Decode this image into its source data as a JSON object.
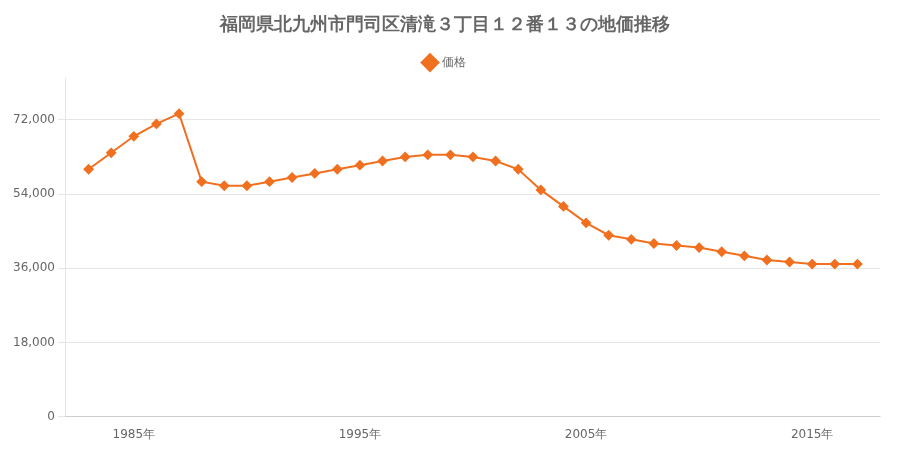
{
  "chart_data": {
    "type": "line",
    "title": "福岡県北九州市門司区清滝３丁目１２番１３の地価推移",
    "x": [
      1983,
      1984,
      1985,
      1986,
      1987,
      1988,
      1989,
      1990,
      1991,
      1992,
      1993,
      1994,
      1995,
      1996,
      1997,
      1998,
      1999,
      2000,
      2001,
      2002,
      2003,
      2004,
      2005,
      2006,
      2007,
      2008,
      2009,
      2010,
      2011,
      2012,
      2013,
      2014,
      2015,
      2016,
      2017
    ],
    "series": [
      {
        "name": "価格",
        "color": "#f07020",
        "marker": "diamond",
        "values": [
          60000,
          64000,
          68000,
          71000,
          73500,
          57000,
          56000,
          56000,
          57000,
          58000,
          59000,
          60000,
          61000,
          62000,
          63000,
          63500,
          63500,
          63000,
          62000,
          60000,
          55000,
          51000,
          47000,
          44000,
          43000,
          42000,
          41500,
          41000,
          40000,
          39000,
          38000,
          37500,
          37000,
          37000,
          37000
        ]
      }
    ],
    "xlim": [
      1982,
      2018
    ],
    "xticks": [
      {
        "value": 1985,
        "label": "1985年"
      },
      {
        "value": 1995,
        "label": "1995年"
      },
      {
        "value": 2005,
        "label": "2005年"
      },
      {
        "value": 2015,
        "label": "2015年"
      }
    ],
    "ylim": [
      0,
      82000
    ],
    "yticks": [
      0,
      {
        "value": 18000,
        "label": "18,000"
      },
      {
        "value": 36000,
        "label": "36,000"
      },
      {
        "value": 54000,
        "label": "54,000"
      },
      {
        "value": 72000,
        "label": "72,000"
      }
    ],
    "grid": true,
    "legend": "top"
  }
}
